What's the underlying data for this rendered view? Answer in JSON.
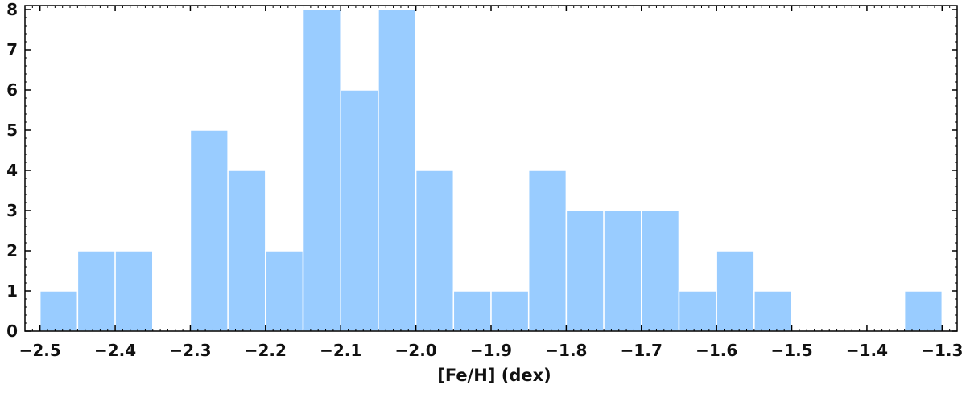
{
  "chart_data": {
    "type": "bar",
    "subtype": "histogram",
    "xlabel": "[Fe/H] (dex)",
    "ylabel": "",
    "xlim": [
      -2.52,
      -1.28
    ],
    "ylim": [
      0,
      8.1
    ],
    "bar_color": "#99ccff",
    "bar_edge_color": "#ffffff",
    "bin_width": 0.05,
    "bins": [
      {
        "left": -2.5,
        "count": 1
      },
      {
        "left": -2.45,
        "count": 2
      },
      {
        "left": -2.4,
        "count": 2
      },
      {
        "left": -2.35,
        "count": 0
      },
      {
        "left": -2.3,
        "count": 5
      },
      {
        "left": -2.25,
        "count": 4
      },
      {
        "left": -2.2,
        "count": 2
      },
      {
        "left": -2.15,
        "count": 8
      },
      {
        "left": -2.1,
        "count": 6
      },
      {
        "left": -2.05,
        "count": 8
      },
      {
        "left": -2.0,
        "count": 4
      },
      {
        "left": -1.95,
        "count": 1
      },
      {
        "left": -1.9,
        "count": 1
      },
      {
        "left": -1.85,
        "count": 4
      },
      {
        "left": -1.8,
        "count": 3
      },
      {
        "left": -1.75,
        "count": 3
      },
      {
        "left": -1.7,
        "count": 3
      },
      {
        "left": -1.65,
        "count": 1
      },
      {
        "left": -1.6,
        "count": 2
      },
      {
        "left": -1.55,
        "count": 1
      },
      {
        "left": -1.5,
        "count": 0
      },
      {
        "left": -1.45,
        "count": 0
      },
      {
        "left": -1.4,
        "count": 0
      },
      {
        "left": -1.35,
        "count": 1
      }
    ],
    "x_ticks": [
      "−2.5",
      "−2.4",
      "−2.3",
      "−2.2",
      "−2.1",
      "−2.0",
      "−1.9",
      "−1.8",
      "−1.7",
      "−1.6",
      "−1.5",
      "−1.4",
      "−1.3"
    ],
    "x_tick_values": [
      -2.5,
      -2.4,
      -2.3,
      -2.2,
      -2.1,
      -2.0,
      -1.9,
      -1.8,
      -1.7,
      -1.6,
      -1.5,
      -1.4,
      -1.3
    ],
    "y_ticks": [
      "0",
      "1",
      "2",
      "3",
      "4",
      "5",
      "6",
      "7",
      "8"
    ],
    "y_tick_values": [
      0,
      1,
      2,
      3,
      4,
      5,
      6,
      7,
      8
    ],
    "x_minor_step": 0.01,
    "y_minor_step": 0.2,
    "grid": false,
    "legend": "none"
  }
}
